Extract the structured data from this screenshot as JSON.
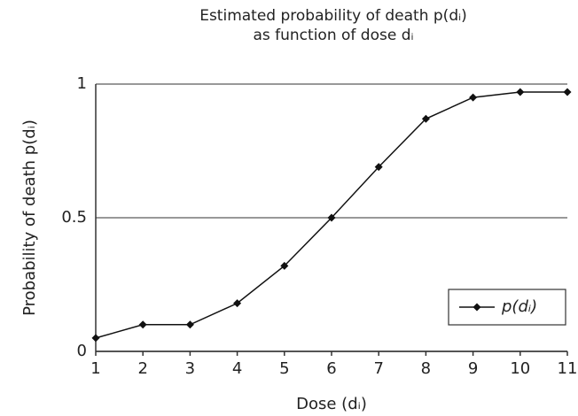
{
  "chart_data": {
    "type": "line",
    "title": [
      "Estimated probability of death p(dᵢ)",
      "as function of dose dᵢ"
    ],
    "xlabel": "Dose (dᵢ)",
    "ylabel": "Probability of death p(dᵢ)",
    "x": [
      1,
      2,
      3,
      4,
      5,
      6,
      7,
      8,
      9,
      10,
      11
    ],
    "series": [
      {
        "name": "p(dᵢ)",
        "color": "#111111",
        "values": [
          0.05,
          0.1,
          0.1,
          0.18,
          0.32,
          0.5,
          0.69,
          0.87,
          0.95,
          0.97,
          0.97
        ]
      }
    ],
    "xlim": [
      1,
      11
    ],
    "xticks": [
      1,
      2,
      3,
      4,
      5,
      6,
      7,
      8,
      9,
      10,
      11
    ],
    "ylim": [
      0,
      1
    ],
    "yticks": [
      0,
      0.5,
      1
    ],
    "grid": true,
    "legend": "lower right"
  }
}
